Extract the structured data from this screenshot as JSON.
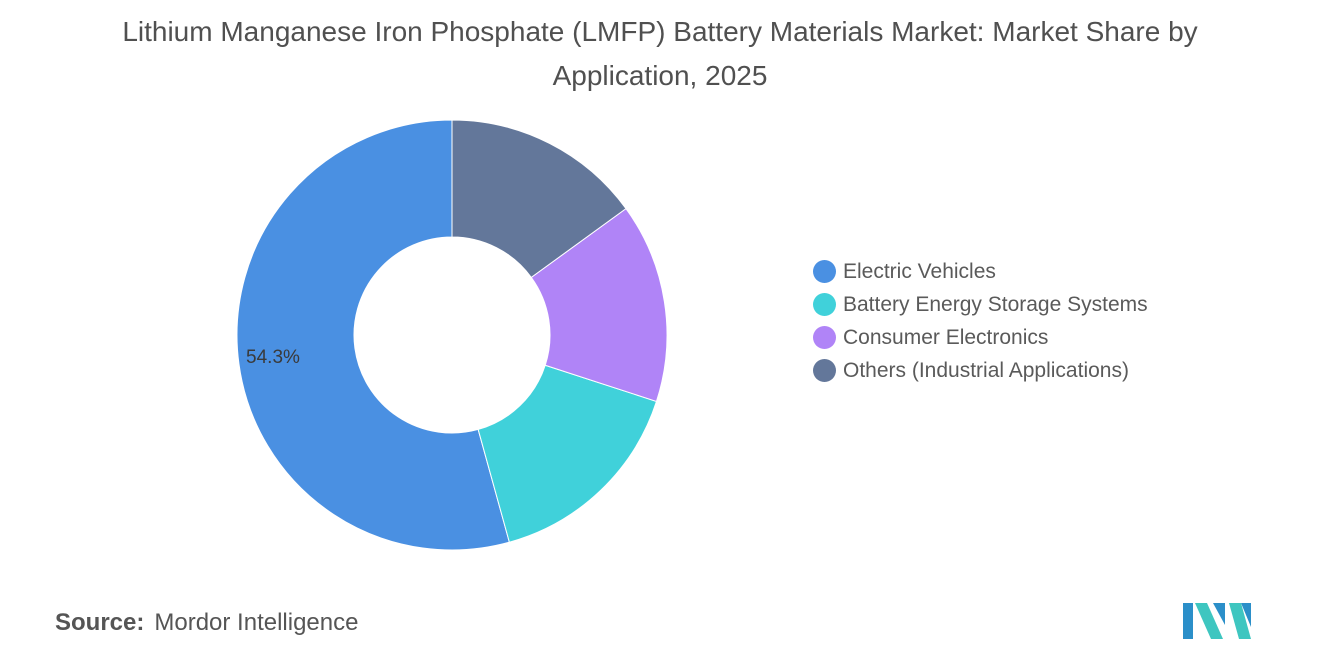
{
  "title": "Lithium Manganese Iron Phosphate (LMFP) Battery Materials Market: Market Share by Application, 2025",
  "chart_data": {
    "type": "pie",
    "variant": "donut",
    "title": "Lithium Manganese Iron Phosphate (LMFP) Battery Materials Market: Market Share by Application, 2025",
    "unit": "%",
    "categories": [
      "Electric Vehicles",
      "Battery Energy Storage Systems",
      "Consumer Electronics",
      "Others (Industrial Applications)"
    ],
    "values": [
      54.3,
      15.7,
      15.0,
      15.0
    ],
    "colors": [
      "#4a90e2",
      "#40d1da",
      "#b084f7",
      "#63779a"
    ],
    "data_labels": [
      "54.3%",
      "",
      "",
      ""
    ],
    "legend_position": "right"
  },
  "source": {
    "label": "Source:",
    "text": "Mordor Intelligence"
  },
  "logo_colors": [
    "#2b8fc9",
    "#3ec6c0"
  ]
}
